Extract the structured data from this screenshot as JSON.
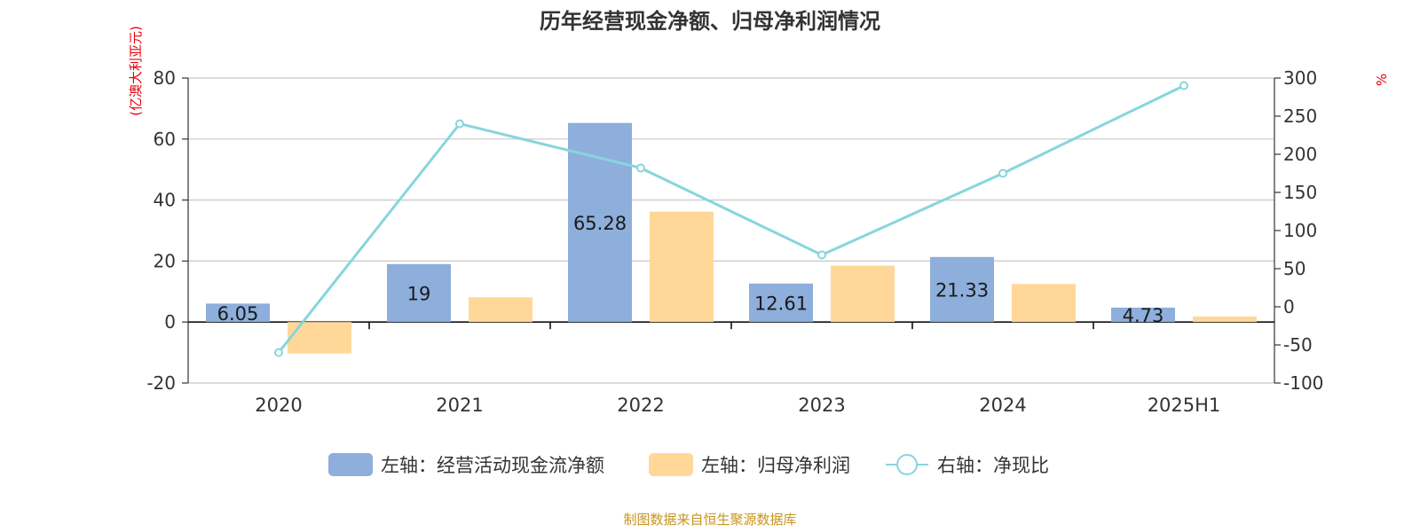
{
  "chart_data": {
    "type": "bar",
    "title": "历年经营现金净额、归母净利润情况",
    "left_axis_unit": "(亿澳大利亚元)",
    "right_axis_unit": "%",
    "categories": [
      "2020",
      "2021",
      "2022",
      "2023",
      "2024",
      "2025H1"
    ],
    "left_axis": {
      "ylim": [
        -20,
        80
      ],
      "ticks": [
        -20,
        0,
        20,
        40,
        60,
        80
      ]
    },
    "right_axis": {
      "ylim": [
        -100,
        300
      ],
      "ticks": [
        -100,
        -50,
        0,
        50,
        100,
        150,
        200,
        250,
        300
      ]
    },
    "grid": true,
    "legend_position": "bottom",
    "series": [
      {
        "name": "左轴：经营活动现金流净额",
        "type": "bar",
        "axis": "left",
        "color": "#8eaedb",
        "values": [
          6.05,
          19,
          65.28,
          12.61,
          21.33,
          4.73
        ],
        "labels": [
          "6.05",
          "19",
          "65.28",
          "12.61",
          "21.33",
          "4.73"
        ]
      },
      {
        "name": "左轴：归母净利润",
        "type": "bar",
        "axis": "left",
        "color": "#ffd899",
        "values": [
          -10.3,
          8.1,
          36.2,
          18.5,
          12.5,
          1.8
        ]
      },
      {
        "name": "右轴：净现比",
        "type": "line",
        "axis": "right",
        "color": "#86d6dc",
        "values": [
          -60,
          240,
          182,
          68,
          175,
          290
        ]
      }
    ],
    "source": "制图数据来自恒生聚源数据库"
  }
}
